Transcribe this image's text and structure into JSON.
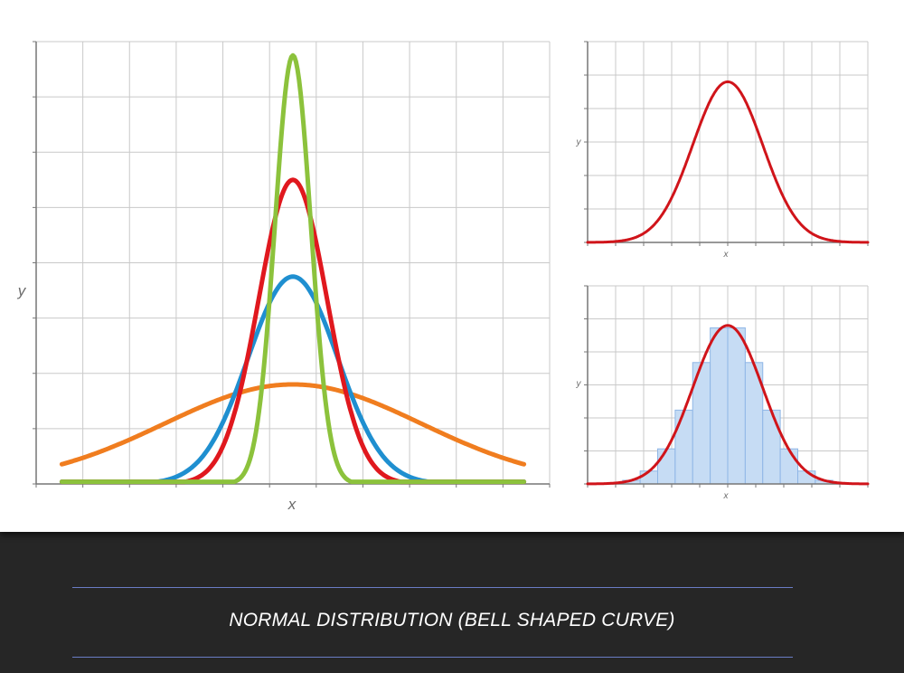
{
  "caption": "NORMAL DISTRIBUTION (BELL SHAPED CURVE)",
  "chart_data": [
    {
      "type": "line",
      "xlabel": "x",
      "ylabel": "y",
      "x_range": [
        -6,
        6
      ],
      "y_range": [
        0,
        0.8
      ],
      "grid": true,
      "series": [
        {
          "color": "#f07d1f",
          "mu": 0,
          "sigma": 3.0,
          "samples": [
            [
              -6,
              0.075
            ],
            [
              -3,
              0.14
            ],
            [
              0,
              0.18
            ],
            [
              3,
              0.14
            ],
            [
              6,
              0.075
            ]
          ]
        },
        {
          "color": "#1f8fd0",
          "mu": 0,
          "sigma": 1.05,
          "samples": [
            [
              -6,
              0.005
            ],
            [
              -2,
              0.095
            ],
            [
              0,
              0.375
            ],
            [
              2,
              0.095
            ],
            [
              6,
              0.005
            ]
          ]
        },
        {
          "color": "#e0181e",
          "mu": 0,
          "sigma": 0.8,
          "samples": [
            [
              -6,
              0.004
            ],
            [
              -2,
              0.04
            ],
            [
              0,
              0.55
            ],
            [
              2,
              0.04
            ],
            [
              6,
              0.004
            ]
          ]
        },
        {
          "color": "#8cc23c",
          "mu": 0,
          "sigma": 0.42,
          "samples": [
            [
              -6,
              0.0
            ],
            [
              -1,
              0.04
            ],
            [
              0,
              0.775
            ],
            [
              1,
              0.04
            ],
            [
              6,
              0.0
            ]
          ]
        }
      ]
    },
    {
      "type": "line",
      "xlabel": "x",
      "ylabel": "y",
      "x_range": [
        -4,
        4
      ],
      "y_range": [
        0,
        0.5
      ],
      "grid": true,
      "series": [
        {
          "color": "#d0141a",
          "mu": 0,
          "sigma": 1,
          "peak": 0.4
        }
      ]
    },
    {
      "type": "bar",
      "xlabel": "x",
      "ylabel": "y",
      "x_range": [
        -4,
        4
      ],
      "y_range": [
        0,
        0.5
      ],
      "grid": true,
      "categories": [
        "-2.75",
        "-2.25",
        "-1.75",
        "-1.25",
        "-0.75",
        "-0.25",
        "0.25",
        "0.75",
        "1.25",
        "1.75",
        "2.25",
        "2.75"
      ],
      "values": [
        0.009,
        0.032,
        0.087,
        0.183,
        0.301,
        0.387,
        0.387,
        0.301,
        0.183,
        0.087,
        0.032,
        0.009
      ],
      "bar_color": "#c6dcf4",
      "series": [
        {
          "color": "#d0141a",
          "mu": 0,
          "sigma": 1,
          "peak": 0.4
        }
      ]
    }
  ]
}
